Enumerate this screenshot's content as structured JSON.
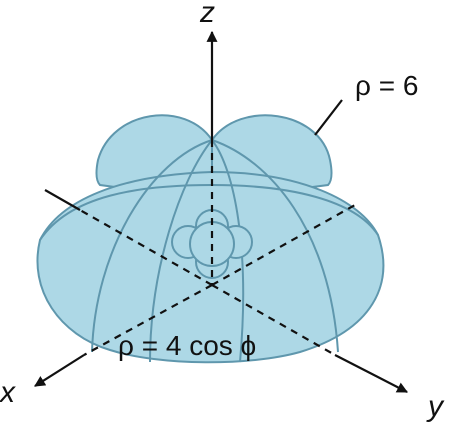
{
  "diagram": {
    "axes": {
      "z": "z",
      "x": "x",
      "y": "y"
    },
    "labels": {
      "outer_surface": "ρ = 6",
      "inner_surface": "ρ = 4 cos ϕ"
    },
    "colors": {
      "surface_fill": "#add8e6",
      "surface_edge": "#5f97ad",
      "axes": "#111111"
    }
  }
}
